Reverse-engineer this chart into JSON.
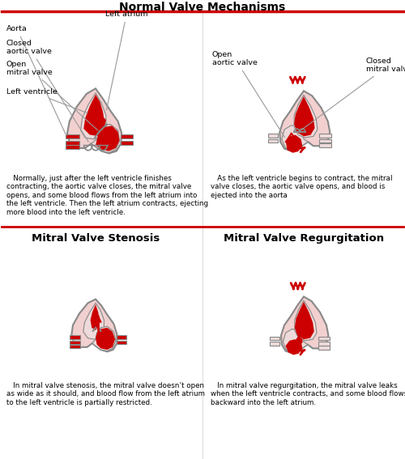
{
  "title": "Normal Valve Mechanisms",
  "bg_color": "#ffffff",
  "pink": "#f2d0d0",
  "pink_dark": "#e8b8b8",
  "red": "#cc0000",
  "red_dark": "#aa0000",
  "stroke": "#888888",
  "stroke_dark": "#555555",
  "divider_red": "#cc0000",
  "panel_titles": [
    "Mitral Valve Stenosis",
    "Mitral Valve Regurgitation"
  ],
  "captions": {
    "top_left": "   Normally, just after the left ventricle finishes\ncontracting, the aortic valve closes, the mitral valve\nopens, and some blood flows from the left atrium into\nthe left ventricle. Then the left atrium contracts, ejecting\nmore blood into the left ventricle.",
    "top_right": "   As the left ventricle begins to contract, the mitral\nvalve closes, the aortic valve opens, and blood is\nejected into the aorta",
    "bot_left": "   In mitral valve stenosis, the mitral valve doesn’t open\nas wide as it should, and blood flow from the left atrium\nto the left ventricle is partially restricted.",
    "bot_right": "   In mitral valve regurgitation, the mitral valve leaks\nwhen the left ventricle contracts, and some blood flows\nbackward into the left atrium."
  }
}
